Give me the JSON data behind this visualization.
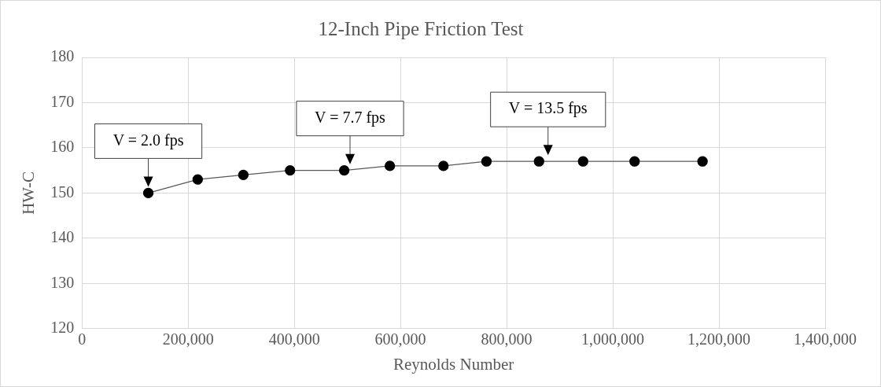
{
  "chart_data": {
    "type": "line",
    "title": "12-Inch Pipe Friction Test",
    "xlabel": "Reynolds Number",
    "ylabel": "HW-C",
    "x": [
      125000,
      218000,
      304000,
      392000,
      494000,
      580000,
      681000,
      762000,
      861000,
      944000,
      1041000,
      1169000
    ],
    "series": [
      {
        "color": "#000000",
        "values": [
          150,
          153,
          154,
          155,
          155,
          156,
          156,
          157,
          157,
          157,
          157,
          157
        ]
      }
    ],
    "xlim": [
      0,
      1400000
    ],
    "xticks": [
      0,
      {
        "value": 200000,
        "label": "200,000"
      },
      {
        "value": 400000,
        "label": "400,000"
      },
      {
        "value": 600000,
        "label": "600,000"
      },
      {
        "value": 800000,
        "label": "800,000"
      },
      {
        "value": 1000000,
        "label": "1,000,000"
      },
      {
        "value": 1200000,
        "label": "1,200,000"
      },
      {
        "value": 1400000,
        "label": "1,400,000"
      }
    ],
    "ylim": [
      120,
      180
    ],
    "yticks": [
      120,
      130,
      140,
      150,
      160,
      170,
      180
    ],
    "grid": true,
    "legend": false,
    "marker": "circle",
    "line_style": "solid",
    "annotations": [
      {
        "text": "V = 2.0 fps",
        "x": 125000,
        "y": 150
      },
      {
        "text": "V = 7.7 fps",
        "x": 505000,
        "y": 155
      },
      {
        "text": "V = 13.5 fps",
        "x": 878000,
        "y": 157
      }
    ]
  }
}
